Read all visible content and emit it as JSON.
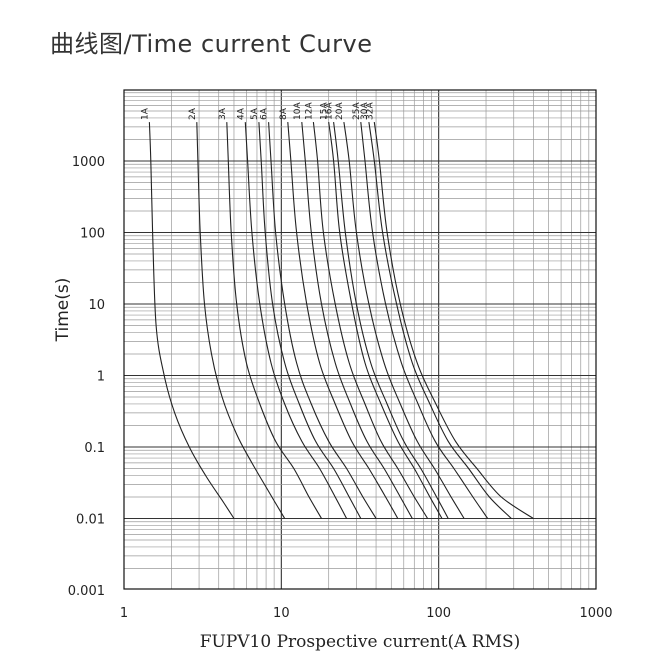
{
  "title": "曲线图/Time current Curve",
  "chart_data": {
    "type": "line",
    "title": "曲线图/Time current Curve",
    "xlabel": "FUPV10 Prospective current(A RMS)",
    "ylabel": "Time(s)",
    "xscale": "log",
    "yscale": "log",
    "xlim": [
      1,
      1000
    ],
    "ylim": [
      0.001,
      5000
    ],
    "xticks": [
      "1",
      "10",
      "100",
      "1000"
    ],
    "yticks": [
      "0.001",
      "0.01",
      "0.1",
      "1",
      "10",
      "100",
      "1000"
    ],
    "grid": true,
    "series": [
      {
        "name": "1A",
        "x": [
          1.45,
          1.48,
          1.52,
          1.6,
          1.8,
          2.1,
          2.6,
          3.3,
          4.2,
          5.0
        ],
        "y": [
          3500,
          1000,
          100,
          5,
          1,
          0.3,
          0.1,
          0.04,
          0.018,
          0.01
        ]
      },
      {
        "name": "2A",
        "x": [
          2.9,
          2.95,
          3.05,
          3.25,
          3.6,
          4.2,
          5.2,
          6.5,
          8.2,
          10.5
        ],
        "y": [
          3500,
          1000,
          100,
          10,
          2,
          0.5,
          0.15,
          0.06,
          0.025,
          0.01
        ]
      },
      {
        "name": "3A",
        "x": [
          4.5,
          4.6,
          4.8,
          5.2,
          6.0,
          7.3,
          9.2,
          12,
          15,
          18
        ],
        "y": [
          3500,
          1000,
          100,
          10,
          1.5,
          0.4,
          0.12,
          0.05,
          0.02,
          0.01
        ]
      },
      {
        "name": "4A",
        "x": [
          5.9,
          6.1,
          6.5,
          7.3,
          8.6,
          10.5,
          13.5,
          17.5,
          22,
          26
        ],
        "y": [
          3500,
          1000,
          100,
          10,
          1.5,
          0.4,
          0.12,
          0.05,
          0.02,
          0.01
        ]
      },
      {
        "name": "5A",
        "x": [
          7.2,
          7.45,
          7.9,
          8.8,
          10.5,
          13,
          16.5,
          21.5,
          27,
          32
        ],
        "y": [
          3500,
          1000,
          100,
          10,
          1.5,
          0.4,
          0.12,
          0.05,
          0.02,
          0.01
        ]
      },
      {
        "name": "6A",
        "x": [
          8.3,
          8.6,
          9.2,
          10.5,
          12.5,
          15.5,
          20,
          26,
          33,
          40
        ],
        "y": [
          3500,
          1000,
          100,
          10,
          1.5,
          0.4,
          0.12,
          0.05,
          0.02,
          0.01
        ]
      },
      {
        "name": "8A",
        "x": [
          11,
          11.5,
          12.5,
          14.5,
          17.5,
          22,
          28,
          36,
          46,
          55
        ],
        "y": [
          3500,
          1000,
          100,
          10,
          1.5,
          0.4,
          0.12,
          0.05,
          0.02,
          0.01
        ]
      },
      {
        "name": "10A",
        "x": [
          13.5,
          14.2,
          15.5,
          18,
          22,
          27.5,
          35,
          45,
          57,
          68
        ],
        "y": [
          3500,
          1000,
          100,
          10,
          1.5,
          0.4,
          0.12,
          0.05,
          0.02,
          0.01
        ]
      },
      {
        "name": "12A",
        "x": [
          16,
          17,
          18.5,
          22,
          27,
          34,
          43,
          55,
          70,
          85
        ],
        "y": [
          3500,
          1000,
          100,
          10,
          1.5,
          0.4,
          0.12,
          0.05,
          0.02,
          0.01
        ]
      },
      {
        "name": "15A",
        "x": [
          20,
          21.5,
          23.5,
          28,
          34,
          43,
          55,
          70,
          88,
          105
        ],
        "y": [
          3500,
          1000,
          100,
          10,
          1.5,
          0.4,
          0.12,
          0.05,
          0.02,
          0.01
        ]
      },
      {
        "name": "16A",
        "x": [
          21.5,
          23,
          25.5,
          30,
          37,
          47,
          60,
          77,
          97,
          115
        ],
        "y": [
          3500,
          1000,
          100,
          10,
          1.5,
          0.4,
          0.12,
          0.05,
          0.02,
          0.01
        ]
      },
      {
        "name": "20A",
        "x": [
          25,
          27,
          30,
          36,
          45,
          57,
          73,
          94,
          120,
          145
        ],
        "y": [
          3500,
          1000,
          100,
          10,
          1.5,
          0.4,
          0.12,
          0.05,
          0.02,
          0.01
        ]
      },
      {
        "name": "25A",
        "x": [
          32,
          34,
          38,
          46,
          58,
          74,
          95,
          125,
          165,
          205
        ],
        "y": [
          3500,
          1000,
          100,
          10,
          1.5,
          0.4,
          0.12,
          0.05,
          0.02,
          0.01
        ]
      },
      {
        "name": "30A",
        "x": [
          36,
          39,
          44,
          54,
          68,
          88,
          115,
          155,
          210,
          290
        ],
        "y": [
          3500,
          1000,
          100,
          10,
          1.5,
          0.4,
          0.12,
          0.05,
          0.02,
          0.01
        ]
      },
      {
        "name": "32A",
        "x": [
          39,
          42,
          47,
          57,
          73,
          96,
          128,
          175,
          250,
          400
        ],
        "y": [
          3500,
          1000,
          100,
          10,
          1.5,
          0.4,
          0.12,
          0.05,
          0.02,
          0.01
        ]
      }
    ]
  }
}
